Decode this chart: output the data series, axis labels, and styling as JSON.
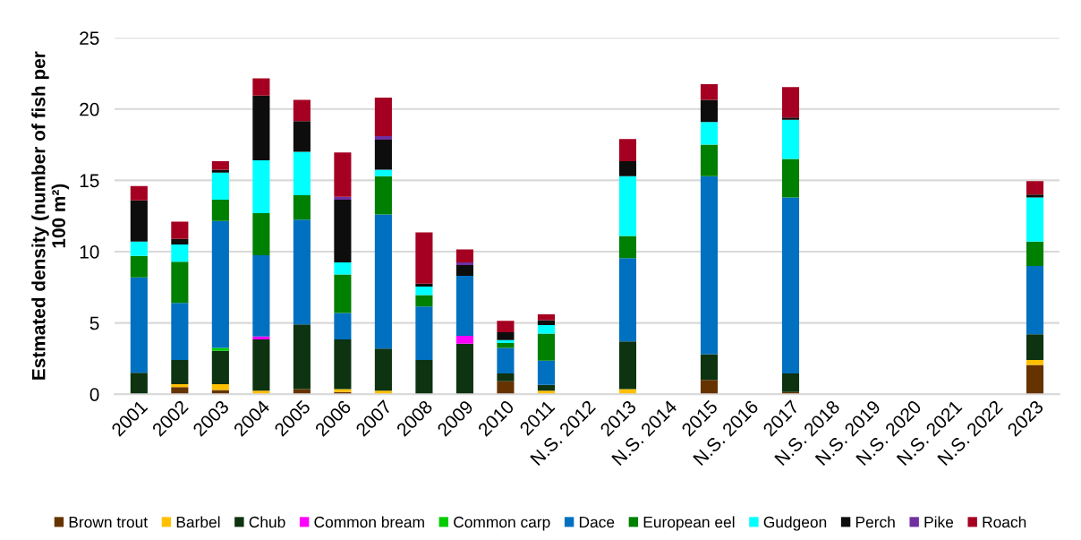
{
  "chart_data": {
    "type": "bar",
    "stacked": true,
    "ylabel": "Estmated density (number of fish per 100 m²)",
    "categories": [
      "2001",
      "2002",
      "2003",
      "2004",
      "2005",
      "2006",
      "2007",
      "2008",
      "2009",
      "2010",
      "2011",
      "N.S. 2012",
      "2013",
      "N.S. 2014",
      "2015",
      "N.S. 2016",
      "2017",
      "N.S. 2018",
      "N.S. 2019",
      "N.S. 2020",
      "N.S. 2021",
      "N.S. 2022",
      "2023"
    ],
    "ylim": [
      0,
      25
    ],
    "yticks": [
      0,
      5,
      10,
      15,
      20,
      25
    ],
    "grid": "y",
    "legend": "bottom",
    "series": [
      {
        "name": "Brown trout",
        "color": "#663300",
        "values": [
          0,
          0.5,
          0.3,
          0,
          0.35,
          0.15,
          0,
          0,
          0,
          0.9,
          0,
          null,
          0,
          null,
          1.0,
          null,
          0.15,
          null,
          null,
          null,
          null,
          null,
          2.05
        ]
      },
      {
        "name": "Barbel",
        "color": "#ffc000",
        "values": [
          0,
          0.2,
          0.4,
          0.25,
          0,
          0.2,
          0.25,
          0,
          0,
          0,
          0.25,
          null,
          0.35,
          null,
          0,
          null,
          0,
          null,
          null,
          null,
          null,
          null,
          0.35
        ]
      },
      {
        "name": "Chub",
        "color": "#0d3311",
        "values": [
          1.5,
          1.7,
          2.35,
          3.6,
          4.55,
          3.5,
          2.95,
          2.4,
          3.55,
          0.55,
          0.4,
          null,
          3.35,
          null,
          1.8,
          null,
          1.3,
          null,
          null,
          null,
          null,
          null,
          1.8
        ]
      },
      {
        "name": "Common bream",
        "color": "#ff00ff",
        "values": [
          0,
          0,
          0,
          0.2,
          0,
          0,
          0,
          0,
          0.55,
          0,
          0,
          null,
          0,
          null,
          0,
          null,
          0,
          null,
          null,
          null,
          null,
          null,
          0
        ]
      },
      {
        "name": "Common carp",
        "color": "#00cc00",
        "values": [
          0,
          0,
          0.2,
          0,
          0,
          0,
          0,
          0,
          0,
          0,
          0,
          null,
          0,
          null,
          0,
          null,
          0,
          null,
          null,
          null,
          null,
          null,
          0
        ]
      },
      {
        "name": "Dace",
        "color": "#0070c0",
        "values": [
          6.7,
          4.0,
          8.9,
          5.7,
          7.35,
          1.85,
          9.4,
          3.75,
          4.2,
          1.8,
          1.7,
          null,
          5.85,
          null,
          12.5,
          null,
          12.35,
          null,
          null,
          null,
          null,
          null,
          4.8
        ]
      },
      {
        "name": "European eel",
        "color": "#008000",
        "values": [
          1.5,
          2.9,
          1.5,
          2.95,
          1.7,
          2.7,
          2.7,
          0.8,
          0,
          0.35,
          1.9,
          null,
          1.55,
          null,
          2.2,
          null,
          2.7,
          null,
          null,
          null,
          null,
          null,
          1.7
        ]
      },
      {
        "name": "Gudgeon",
        "color": "#00ffff",
        "values": [
          1.0,
          1.2,
          1.9,
          3.7,
          3.05,
          0.85,
          0.45,
          0.6,
          0,
          0.2,
          0.6,
          null,
          4.2,
          null,
          1.6,
          null,
          2.75,
          null,
          null,
          null,
          null,
          null,
          3.1
        ]
      },
      {
        "name": "Perch",
        "color": "#0d0d0d",
        "values": [
          2.9,
          0.4,
          0.2,
          4.55,
          2.15,
          4.4,
          2.1,
          0.2,
          0.75,
          0.55,
          0.35,
          null,
          1.05,
          null,
          1.55,
          null,
          0.15,
          null,
          null,
          null,
          null,
          null,
          0.2
        ]
      },
      {
        "name": "Pike",
        "color": "#7030a0",
        "values": [
          0,
          0,
          0,
          0,
          0,
          0.2,
          0.25,
          0,
          0.2,
          0,
          0,
          null,
          0,
          null,
          0,
          null,
          0,
          null,
          null,
          null,
          null,
          null,
          0
        ]
      },
      {
        "name": "Roach",
        "color": "#a50021",
        "values": [
          1.0,
          1.2,
          0.6,
          1.2,
          1.5,
          3.1,
          2.7,
          3.6,
          0.9,
          0.8,
          0.4,
          null,
          1.55,
          null,
          1.1,
          null,
          2.15,
          null,
          null,
          null,
          null,
          null,
          0.95
        ]
      }
    ]
  }
}
